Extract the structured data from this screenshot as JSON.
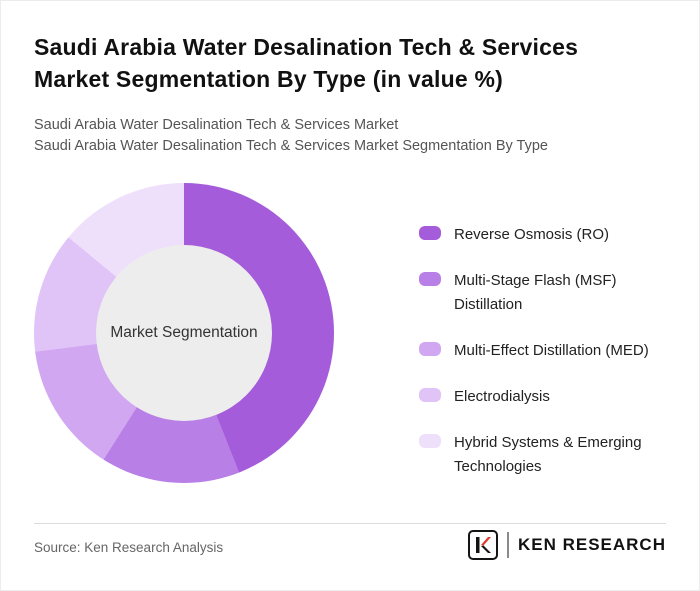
{
  "page": {
    "title": "Saudi Arabia Water Desalination Tech & Services Market Segmentation By Type (in value %)",
    "subtitle_line1": "Saudi Arabia Water Desalination Tech & Services Market",
    "subtitle_line2": "Saudi Arabia Water Desalination Tech & Services Market Segmentation By Type"
  },
  "chart_data": {
    "type": "pie",
    "style": "donut",
    "title": "Saudi Arabia Water Desalination Tech & Services Market Segmentation By Type (in value %)",
    "center_label": "Market Segmentation",
    "categories": [
      "Reverse Osmosis (RO)",
      "Multi-Stage Flash (MSF) Distillation",
      "Multi-Effect Distillation (MED)",
      "Electrodialysis",
      "Hybrid Systems & Emerging Technologies"
    ],
    "values": [
      44,
      15,
      14,
      13,
      14
    ],
    "colors": [
      "#a55cdb",
      "#b87fe6",
      "#d2a7f1",
      "#e0c3f7",
      "#eedffb"
    ],
    "legend_position": "right",
    "start_angle_deg": 0,
    "hole_color": "#ededed"
  },
  "footer": {
    "source": "Source: Ken Research Analysis",
    "logo_text": "KEN RESEARCH"
  }
}
